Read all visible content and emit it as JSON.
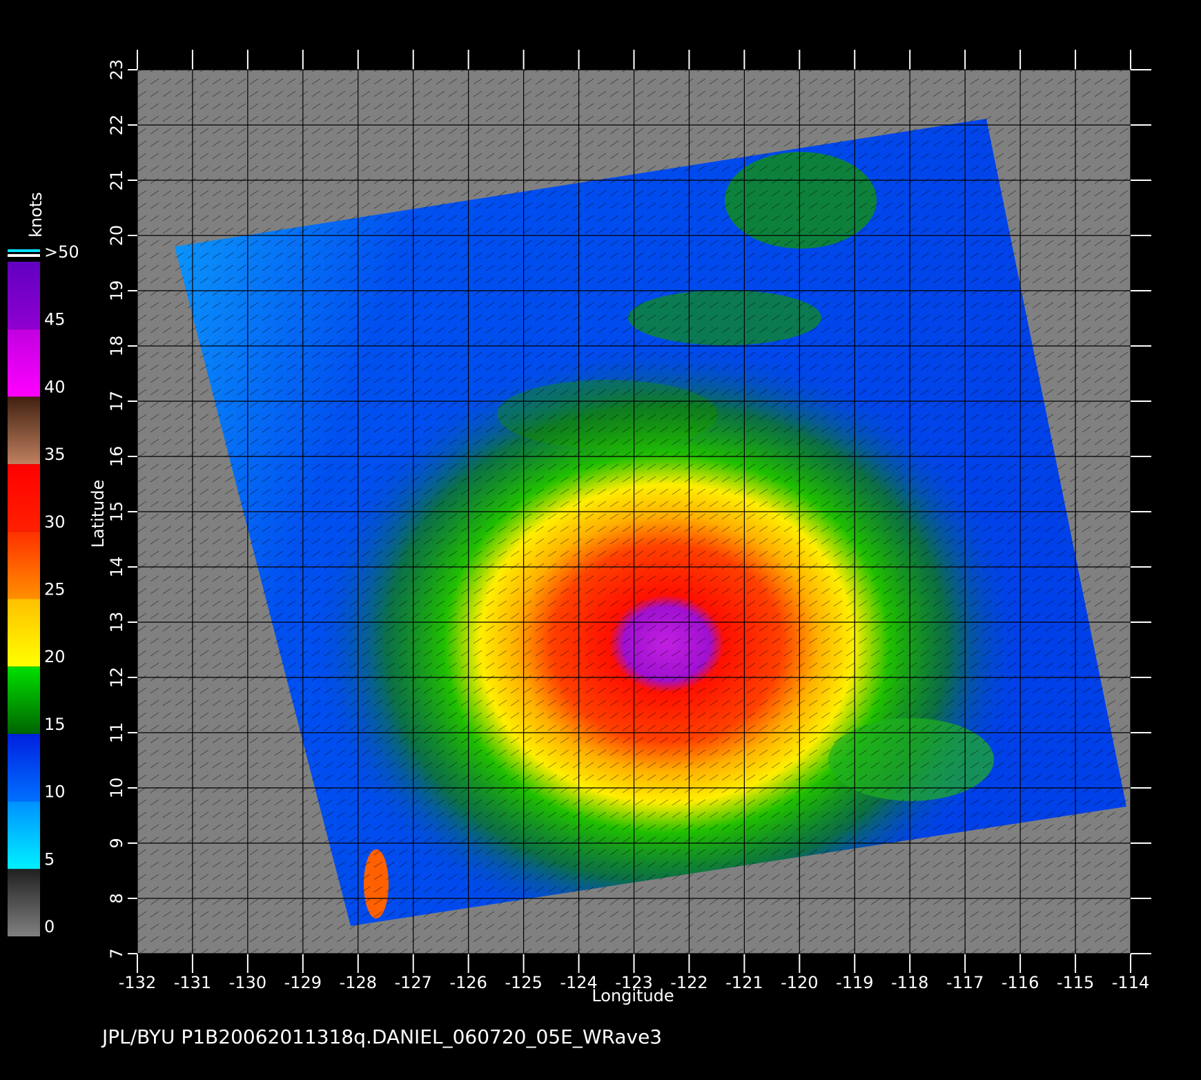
{
  "map": {
    "xlabel": "Longitude",
    "ylabel": "Latitude",
    "xlim": [
      -132,
      -114
    ],
    "ylim": [
      7,
      23
    ],
    "xticks": [
      -132,
      -131,
      -130,
      -129,
      -128,
      -127,
      -126,
      -125,
      -124,
      -123,
      -122,
      -121,
      -120,
      -119,
      -118,
      -117,
      -116,
      -115,
      -114
    ],
    "yticks": [
      7,
      8,
      9,
      10,
      11,
      12,
      13,
      14,
      15,
      16,
      17,
      18,
      19,
      20,
      21,
      22,
      23
    ],
    "grid": true
  },
  "colorbar": {
    "title": "knots",
    "lim": [
      0,
      50
    ],
    "ticks": [
      0,
      5,
      10,
      15,
      20,
      25,
      30,
      35,
      40,
      45,
      {
        "value": 50,
        "label": ">50"
      }
    ],
    "colors": [
      [
        "#808080",
        "#202020"
      ],
      [
        "#00f0ff",
        "#0090ff"
      ],
      [
        "#0070ff",
        "#0020e0"
      ],
      [
        "#006400",
        "#00e000"
      ],
      [
        "#ffff00",
        "#ffc000"
      ],
      [
        "#ff9000",
        "#ff3000"
      ],
      [
        "#ff2000",
        "#ff0000"
      ],
      [
        "#c08060",
        "#402010"
      ],
      [
        "#ff00ff",
        "#c000e0"
      ],
      [
        "#9000d0",
        "#6000c0"
      ]
    ]
  },
  "footer": "JPL/BYU  P1B20062011318q.DANIEL_060720_05E_WRave3"
}
